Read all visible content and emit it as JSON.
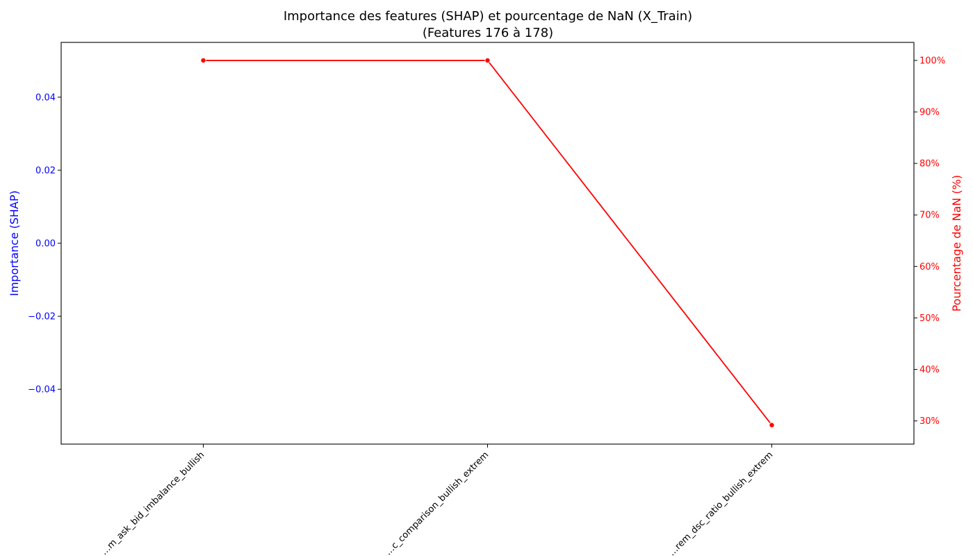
{
  "chart_data": {
    "type": "line",
    "title_line1": "Importance des features (SHAP) et pourcentage de NaN (X_Train)",
    "title_line2": "(Features 176 à 178)",
    "categories": [
      "…m_ask_bid_imbalance_bullish",
      "…c_comparison_bullish_extrem",
      "…rem_dsc_ratio_bullish_extrem"
    ],
    "left_axis": {
      "label": "Importance (SHAP)",
      "color": "#0000ff",
      "ylim": [
        -0.055,
        0.055
      ],
      "ticks": [
        -0.04,
        -0.02,
        0.0,
        0.02,
        0.04
      ],
      "tick_labels": [
        "−0.04",
        "−0.02",
        "0.00",
        "0.02",
        "0.04"
      ]
    },
    "right_axis": {
      "label": "Pourcentage de NaN (%)",
      "color": "#ff0000",
      "ylim": [
        25.5,
        103.5
      ],
      "ticks": [
        30,
        40,
        50,
        60,
        70,
        80,
        90,
        100
      ],
      "tick_labels": [
        "30%",
        "40%",
        "50%",
        "60%",
        "70%",
        "80%",
        "90%",
        "100%"
      ]
    },
    "series": [
      {
        "axis": "right",
        "values": [
          100,
          100,
          29.2
        ],
        "color": "#ff0000"
      }
    ],
    "grid": false,
    "legend": "none"
  }
}
